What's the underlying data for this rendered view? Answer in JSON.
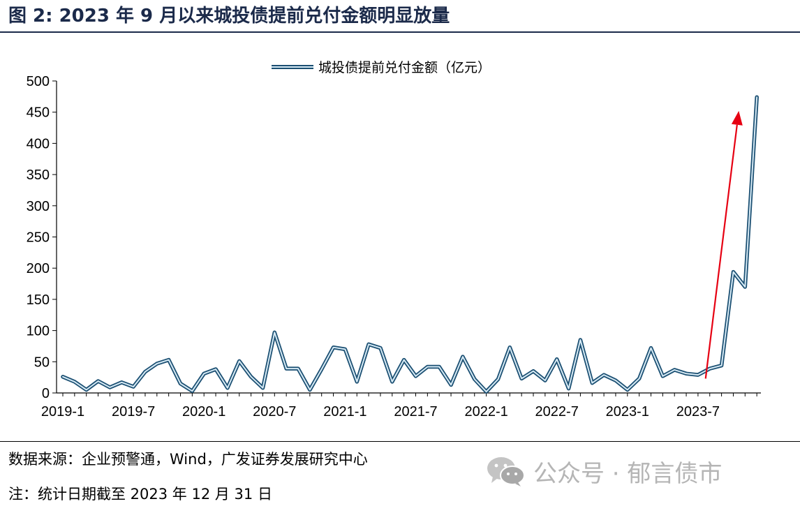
{
  "header": {
    "title": "图 2:  2023 年 9 月以来城投债提前兑付金额明显放量"
  },
  "footer": {
    "source": "数据来源：企业预警通，Wind，广发证券发展研究中心",
    "note": "注：统计日期截至 2023 年 12 月 31 日"
  },
  "watermark": {
    "text": "公众号 · 郁言债市",
    "icon": "wechat-icon"
  },
  "colors": {
    "line": "#3b7fa8",
    "arrow": "#e60012",
    "title": "#1b2a4a"
  },
  "chart_data": {
    "type": "line",
    "title": "",
    "xlabel": "",
    "ylabel": "",
    "ylim": [
      0,
      500
    ],
    "yticks": [
      0,
      50,
      100,
      150,
      200,
      250,
      300,
      350,
      400,
      450,
      500
    ],
    "xtick_labels": [
      "2019-1",
      "2019-7",
      "2020-1",
      "2020-7",
      "2021-1",
      "2021-7",
      "2022-1",
      "2022-7",
      "2023-1",
      "2023-7"
    ],
    "legend_position": "top-center",
    "grid": false,
    "x": [
      "2019-1",
      "2019-2",
      "2019-3",
      "2019-4",
      "2019-5",
      "2019-6",
      "2019-7",
      "2019-8",
      "2019-9",
      "2019-10",
      "2019-11",
      "2019-12",
      "2020-1",
      "2020-2",
      "2020-3",
      "2020-4",
      "2020-5",
      "2020-6",
      "2020-7",
      "2020-8",
      "2020-9",
      "2020-10",
      "2020-11",
      "2020-12",
      "2021-1",
      "2021-2",
      "2021-3",
      "2021-4",
      "2021-5",
      "2021-6",
      "2021-7",
      "2021-8",
      "2021-9",
      "2021-10",
      "2021-11",
      "2021-12",
      "2022-1",
      "2022-2",
      "2022-3",
      "2022-4",
      "2022-5",
      "2022-6",
      "2022-7",
      "2022-8",
      "2022-9",
      "2022-10",
      "2022-11",
      "2022-12",
      "2023-1",
      "2023-2",
      "2023-3",
      "2023-4",
      "2023-5",
      "2023-6",
      "2023-7",
      "2023-8",
      "2023-9",
      "2023-10",
      "2023-11",
      "2023-12"
    ],
    "series": [
      {
        "name": "城投债提前兑付金额（亿元）",
        "values": [
          26,
          18,
          5,
          19,
          9,
          17,
          10,
          34,
          47,
          53,
          15,
          3,
          31,
          38,
          8,
          51,
          26,
          8,
          97,
          39,
          39,
          5,
          38,
          73,
          70,
          18,
          78,
          72,
          18,
          53,
          27,
          42,
          42,
          13,
          58,
          22,
          2,
          22,
          73,
          23,
          35,
          20,
          54,
          7,
          85,
          16,
          29,
          20,
          5,
          23,
          72,
          27,
          37,
          31,
          29,
          39,
          44,
          194,
          170,
          474
        ]
      }
    ],
    "annotations": [
      {
        "type": "arrow",
        "from": {
          "x": "2023-8",
          "y": 23
        },
        "to": {
          "x": "2023-11",
          "y": 452
        }
      }
    ]
  }
}
